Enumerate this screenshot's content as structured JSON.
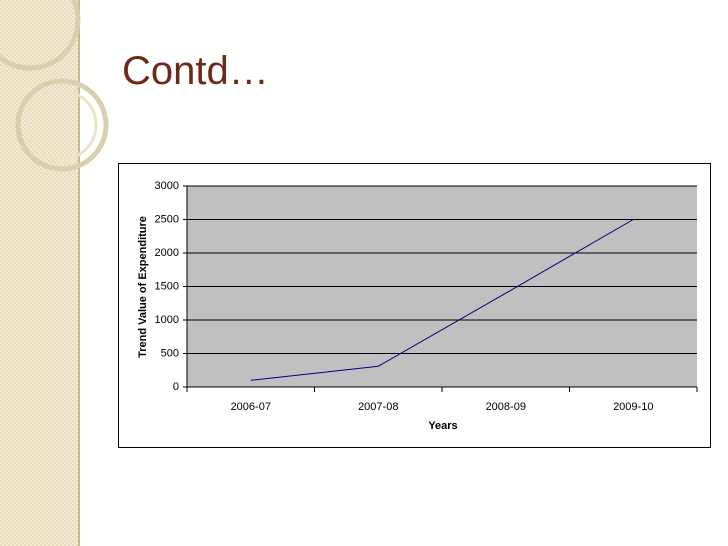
{
  "title": "Contd…",
  "chart_data": {
    "type": "line",
    "categories": [
      "2006-07",
      "2007-08",
      "2008-09",
      "2009-10"
    ],
    "values": [
      100,
      310,
      1400,
      2500
    ],
    "color": "#000080",
    "xlabel": "Years",
    "ylabel": "Trend Value of Expenditure",
    "ylim": [
      0,
      3000
    ],
    "yticks": [
      0,
      500,
      1000,
      1500,
      2000,
      2500,
      3000
    ],
    "grid": true,
    "plot_background": "#c0c0c0"
  }
}
